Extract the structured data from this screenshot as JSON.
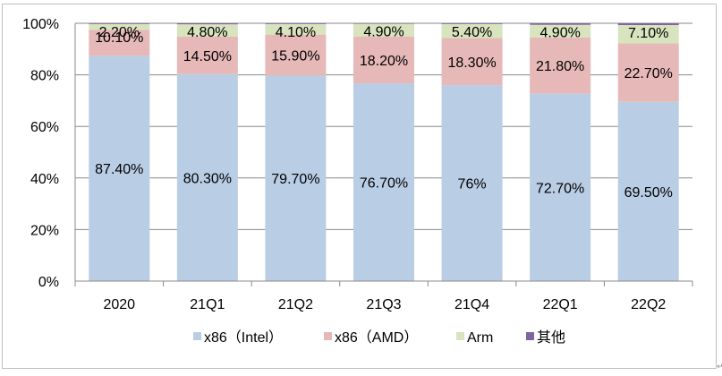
{
  "chart_data": {
    "type": "bar",
    "stacked": true,
    "title": "",
    "xlabel": "",
    "ylabel": "",
    "ylim": [
      0,
      100
    ],
    "yticks": [
      "0%",
      "20%",
      "40%",
      "60%",
      "80%",
      "100%"
    ],
    "categories": [
      "2020",
      "21Q1",
      "21Q2",
      "21Q3",
      "21Q4",
      "22Q1",
      "22Q2"
    ],
    "series": [
      {
        "name": "x86（Intel）",
        "color": "#b9cde5",
        "values": [
          87.4,
          80.3,
          79.7,
          76.7,
          76,
          72.7,
          69.5
        ],
        "labels": [
          "87.40%",
          "80.30%",
          "79.70%",
          "76.70%",
          "76%",
          "72.70%",
          "69.50%"
        ]
      },
      {
        "name": "x86（AMD）",
        "color": "#e6b9b8",
        "values": [
          10.1,
          14.5,
          15.9,
          18.2,
          18.3,
          21.8,
          22.7
        ],
        "labels": [
          "10.10%",
          "14.50%",
          "15.90%",
          "18.20%",
          "18.30%",
          "21.80%",
          "22.70%"
        ]
      },
      {
        "name": "Arm",
        "color": "#d7e4bd",
        "values": [
          2.2,
          4.8,
          4.1,
          4.9,
          5.4,
          4.9,
          7.1
        ],
        "labels": [
          "2.20%",
          "4.80%",
          "4.10%",
          "4.90%",
          "5.40%",
          "4.90%",
          "7.10%"
        ]
      },
      {
        "name": "其他",
        "color": "#8064a2",
        "values": [
          0.3,
          0.4,
          0.3,
          0.2,
          0.3,
          0.6,
          0.7
        ],
        "labels": [
          "",
          "",
          "",
          "",
          "",
          "",
          ""
        ]
      }
    ],
    "grid": true,
    "legend": "bottom"
  }
}
